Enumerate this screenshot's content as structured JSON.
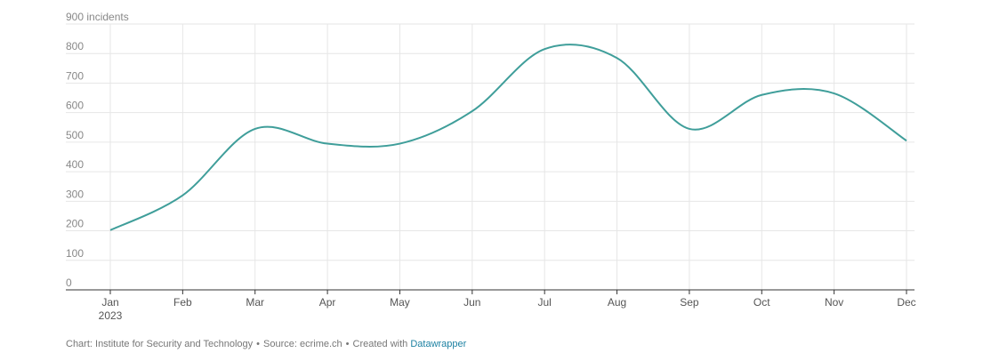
{
  "chart_data": {
    "type": "line",
    "x": [
      "2023-01",
      "2023-02",
      "2023-03",
      "2023-04",
      "2023-05",
      "2023-06",
      "2023-07",
      "2023-08",
      "2023-09",
      "2023-10",
      "2023-11",
      "2023-12"
    ],
    "x_tick_labels": [
      "Jan",
      "Feb",
      "Mar",
      "Apr",
      "May",
      "Jun",
      "Jul",
      "Aug",
      "Sep",
      "Oct",
      "Nov",
      "Dec"
    ],
    "x_year_label": "2023",
    "series": [
      {
        "values": [
          202,
          320,
          545,
          495,
          495,
          605,
          815,
          785,
          545,
          660,
          665,
          505
        ],
        "color": "#3f9e9a"
      }
    ],
    "y_tick_labels": [
      "0",
      "100",
      "200",
      "300",
      "400",
      "500",
      "600",
      "700",
      "800",
      "900 incidents"
    ],
    "ylim": [
      0,
      900
    ],
    "grid": true,
    "smooth": true
  },
  "footer": {
    "chart_label": "Chart: Institute for Security and Technology",
    "separator": "•",
    "source_label": "Source: ecrime.ch",
    "created_with": "Created with",
    "tool_link": "Datawrapper",
    "link_color": "#1d81a2"
  }
}
